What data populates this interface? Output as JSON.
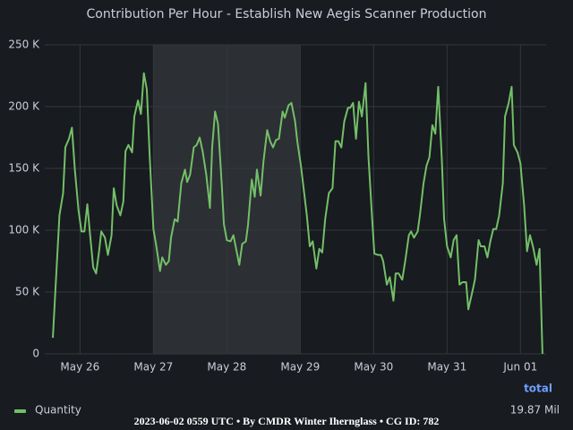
{
  "chart_data": {
    "type": "line",
    "title": "Contribution Per Hour - Establish New Aegis Scanner Production",
    "x": [
      25.63,
      25.72,
      25.77,
      25.8,
      25.85,
      25.89,
      25.93,
      25.98,
      26.02,
      26.06,
      26.1,
      26.13,
      26.18,
      26.22,
      26.26,
      26.29,
      26.34,
      26.38,
      26.43,
      26.46,
      26.5,
      26.55,
      26.59,
      26.62,
      26.66,
      26.71,
      26.74,
      26.79,
      26.83,
      26.87,
      26.91,
      26.95,
      27.0,
      27.04,
      27.09,
      27.12,
      27.17,
      27.21,
      27.24,
      27.29,
      27.33,
      27.38,
      27.43,
      27.46,
      27.5,
      27.55,
      27.59,
      27.63,
      27.67,
      27.72,
      27.77,
      27.8,
      27.84,
      27.88,
      27.93,
      27.96,
      28.0,
      28.05,
      28.09,
      28.12,
      28.17,
      28.21,
      28.26,
      28.29,
      28.34,
      28.38,
      28.41,
      28.46,
      28.5,
      28.55,
      28.59,
      28.63,
      28.67,
      28.71,
      28.76,
      28.79,
      28.84,
      28.88,
      28.93,
      28.96,
      29.01,
      29.05,
      29.09,
      29.13,
      29.17,
      29.22,
      29.26,
      29.3,
      29.34,
      29.39,
      29.44,
      29.48,
      29.52,
      29.56,
      29.6,
      29.65,
      29.68,
      29.72,
      29.76,
      29.8,
      29.84,
      29.89,
      29.93,
      29.98,
      30.01,
      30.06,
      30.1,
      30.13,
      30.18,
      30.22,
      30.27,
      30.3,
      30.34,
      30.39,
      30.43,
      30.48,
      30.51,
      30.55,
      30.6,
      30.63,
      30.68,
      30.72,
      30.76,
      30.8,
      30.84,
      30.88,
      30.93,
      30.96,
      31.0,
      31.05,
      31.09,
      31.13,
      31.17,
      31.21,
      31.26,
      31.29,
      31.34,
      31.38,
      31.43,
      31.46,
      31.51,
      31.55,
      31.59,
      31.63,
      31.67,
      31.71,
      31.76,
      31.79,
      31.84,
      31.88,
      31.91,
      31.96,
      32.0,
      32.05,
      32.09,
      32.13,
      32.17,
      32.22,
      32.26,
      32.3
    ],
    "series": [
      {
        "name": "Quantity",
        "color": "#73bf69",
        "values": [
          13000,
          112000,
          130000,
          167000,
          174000,
          183000,
          149000,
          116000,
          99000,
          99000,
          121000,
          101000,
          70000,
          65000,
          83000,
          99000,
          94000,
          80000,
          96000,
          134000,
          120000,
          112000,
          123000,
          164000,
          169000,
          163000,
          192000,
          205000,
          194000,
          227000,
          214000,
          159000,
          101000,
          87000,
          67000,
          78000,
          72000,
          75000,
          94000,
          109000,
          107000,
          138000,
          149000,
          139000,
          145000,
          167000,
          169000,
          175000,
          164000,
          145000,
          118000,
          167000,
          196000,
          186000,
          138000,
          105000,
          92000,
          91000,
          96000,
          87000,
          72000,
          89000,
          91000,
          105000,
          141000,
          127000,
          149000,
          128000,
          156000,
          181000,
          172000,
          167000,
          173000,
          174000,
          196000,
          191000,
          201000,
          203000,
          188000,
          172000,
          152000,
          132000,
          112000,
          87000,
          91000,
          69000,
          85000,
          82000,
          109000,
          130000,
          134000,
          172000,
          172000,
          167000,
          188000,
          199000,
          199000,
          203000,
          174000,
          204000,
          192000,
          219000,
          159000,
          109000,
          81000,
          80000,
          80000,
          75000,
          56000,
          62000,
          43000,
          65000,
          65000,
          60000,
          75000,
          96000,
          99000,
          94000,
          99000,
          112000,
          138000,
          152000,
          159000,
          185000,
          178000,
          216000,
          156000,
          109000,
          87000,
          78000,
          92000,
          96000,
          56000,
          58000,
          58000,
          36000,
          49000,
          60000,
          92000,
          87000,
          87000,
          78000,
          91000,
          101000,
          101000,
          112000,
          138000,
          192000,
          203000,
          216000,
          169000,
          163000,
          154000,
          120000,
          83000,
          96000,
          87000,
          72000,
          85000,
          0
        ]
      }
    ],
    "xlim": [
      25.52,
      32.35
    ],
    "xticks": [
      {
        "value": 26,
        "label": "May 26"
      },
      {
        "value": 27,
        "label": "May 27"
      },
      {
        "value": 28,
        "label": "May 28"
      },
      {
        "value": 29,
        "label": "May 29"
      },
      {
        "value": 30,
        "label": "May 30"
      },
      {
        "value": 31,
        "label": "May 31"
      },
      {
        "value": 32,
        "label": "Jun 01"
      }
    ],
    "ylim": [
      0,
      250000
    ],
    "yticks": [
      0,
      {
        "value": 50000,
        "label": "50 K"
      },
      {
        "value": 100000,
        "label": "100 K"
      },
      {
        "value": 150000,
        "label": "150 K"
      },
      {
        "value": 200000,
        "label": "200 K"
      },
      {
        "value": 250000,
        "label": "250 K"
      }
    ],
    "grid": true,
    "shaded_range": [
      27,
      29
    ],
    "legend_header": "total",
    "legend_total": "19.87 Mil",
    "footer": "2023-06-02 0559 UTC • By CMDR Winter Ihernglass • CG ID: 782"
  }
}
